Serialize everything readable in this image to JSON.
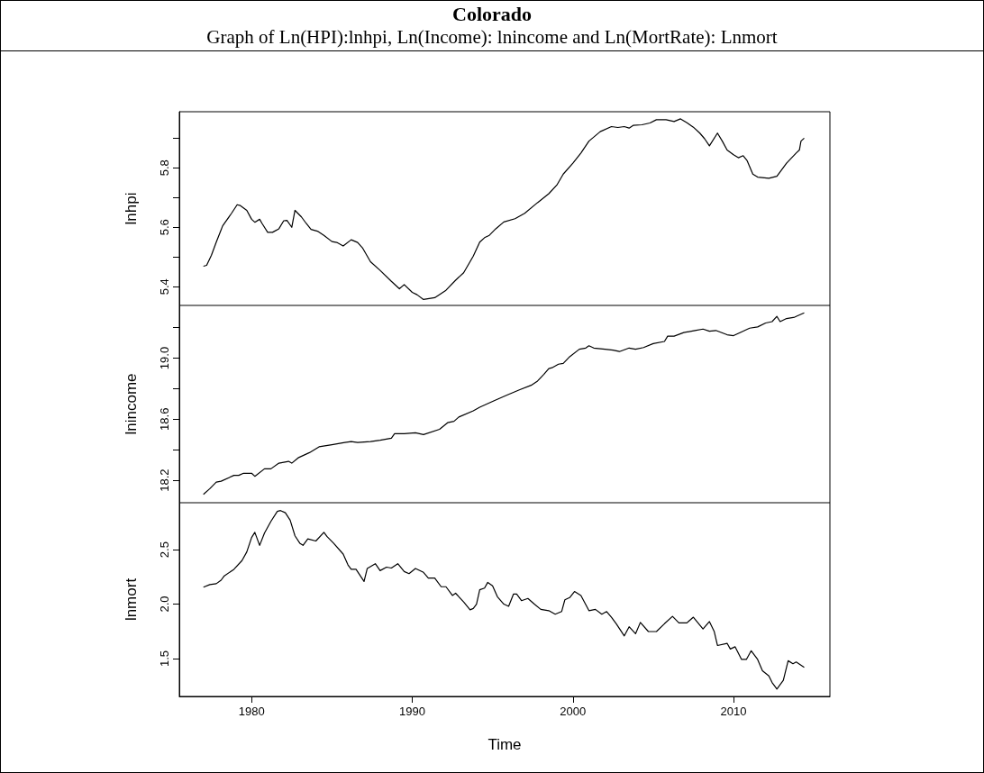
{
  "chart_data": [
    {
      "type": "line",
      "title": "Colorado",
      "subtitle": "Graph of Ln(HPI):lnhpi, Ln(Income): lnincome and Ln(MortRate): Lnmort",
      "ylabel": "lnhpi",
      "tick_labels": "y",
      "xlim": [
        1975.5,
        2016
      ],
      "ylim": [
        5.337,
        5.989
      ],
      "yticks": [
        5.4,
        {
          "value": 5.5,
          "label": null
        },
        5.6,
        {
          "value": 5.7,
          "label": null
        },
        5.8,
        {
          "value": 5.9,
          "label": null
        }
      ],
      "marker": "none",
      "series": [
        {
          "color": "#000000",
          "x": [
            1977.0,
            1977.2,
            1977.5,
            1977.8,
            1978.2,
            1978.75,
            1979.1,
            1979.3,
            1979.7,
            1980.0,
            1980.2,
            1980.5,
            1980.65,
            1981.0,
            1981.3,
            1981.7,
            1982.0,
            1982.2,
            1982.5,
            1982.7,
            1983.1,
            1983.4,
            1983.7,
            1984.1,
            1984.5,
            1985.0,
            1985.3,
            1985.7,
            1986.2,
            1986.6,
            1986.9,
            1987.4,
            1988.0,
            1988.7,
            1989.2,
            1989.5,
            1990.0,
            1990.3,
            1990.7,
            1991.4,
            1992.1,
            1992.7,
            1993.2,
            1993.8,
            1994.2,
            1994.5,
            1994.8,
            1995.2,
            1995.7,
            1996.4,
            1997.0,
            1997.8,
            1998.5,
            1999.0,
            1999.4,
            2000.0,
            2000.5,
            2001.0,
            2001.7,
            2002.4,
            2002.8,
            2003.2,
            2003.5,
            2003.75,
            2004.3,
            2004.8,
            2005.2,
            2005.8,
            2006.3,
            2006.7,
            2007.1,
            2007.5,
            2007.9,
            2008.2,
            2008.5,
            2009.0,
            2009.3,
            2009.6,
            2010.0,
            2010.3,
            2010.6,
            2010.85,
            2011.2,
            2011.5,
            2012.2,
            2012.7,
            2013.3,
            2013.9,
            2014.1,
            2014.2,
            2014.4
          ],
          "values": [
            5.469,
            5.472,
            5.506,
            5.55,
            5.605,
            5.647,
            5.676,
            5.673,
            5.657,
            5.627,
            5.617,
            5.627,
            5.613,
            5.583,
            5.583,
            5.595,
            5.622,
            5.623,
            5.6,
            5.657,
            5.635,
            5.613,
            5.593,
            5.587,
            5.573,
            5.552,
            5.549,
            5.537,
            5.558,
            5.549,
            5.531,
            5.484,
            5.455,
            5.418,
            5.393,
            5.407,
            5.381,
            5.373,
            5.357,
            5.363,
            5.388,
            5.422,
            5.447,
            5.503,
            5.55,
            5.565,
            5.573,
            5.595,
            5.618,
            5.629,
            5.647,
            5.683,
            5.713,
            5.742,
            5.779,
            5.816,
            5.85,
            5.89,
            5.922,
            5.939,
            5.936,
            5.939,
            5.934,
            5.943,
            5.945,
            5.951,
            5.962,
            5.962,
            5.956,
            5.965,
            5.952,
            5.937,
            5.917,
            5.898,
            5.874,
            5.917,
            5.89,
            5.86,
            5.844,
            5.834,
            5.841,
            5.824,
            5.779,
            5.769,
            5.765,
            5.772,
            5.816,
            5.85,
            5.86,
            5.89,
            5.9
          ]
        }
      ]
    },
    {
      "type": "line",
      "ylabel": "lnincome",
      "tick_labels": "y",
      "xlim": [
        1975.5,
        2016
      ],
      "ylim": [
        18.053,
        19.345
      ],
      "yticks": [
        18.2,
        {
          "value": 18.4,
          "label": null
        },
        18.6,
        {
          "value": 18.8,
          "label": null
        },
        {
          "value": 19,
          "label": "19.0"
        },
        {
          "value": 19.2,
          "label": null
        }
      ],
      "marker": "none",
      "series": [
        {
          "color": "#000000",
          "x": [
            1977.0,
            1977.4,
            1977.8,
            1978.1,
            1978.9,
            1979.2,
            1979.5,
            1980.0,
            1980.2,
            1980.8,
            1981.2,
            1981.7,
            1982.3,
            1982.5,
            1982.9,
            1983.6,
            1984.2,
            1985.0,
            1985.8,
            1986.2,
            1986.6,
            1987.4,
            1988.0,
            1988.7,
            1988.9,
            1989.5,
            1990.2,
            1990.7,
            1991.7,
            1992.2,
            1992.6,
            1992.9,
            1993.8,
            1994.2,
            1995.1,
            1995.9,
            1996.7,
            1997.4,
            1997.8,
            1998.2,
            1998.5,
            1998.7,
            1999.1,
            1999.4,
            1999.8,
            2000.4,
            2000.8,
            2001.0,
            2001.3,
            2002.0,
            2002.5,
            2002.9,
            2003.5,
            2003.9,
            2004.4,
            2005.0,
            2005.7,
            2005.9,
            2006.3,
            2006.9,
            2007.6,
            2008.1,
            2008.5,
            2008.9,
            2009.6,
            2010.0,
            2010.4,
            2011.0,
            2011.5,
            2012.0,
            2012.4,
            2012.7,
            2012.9,
            2013.3,
            2013.8,
            2014.4
          ],
          "values": [
            18.108,
            18.145,
            18.188,
            18.194,
            18.232,
            18.232,
            18.246,
            18.246,
            18.226,
            18.275,
            18.275,
            18.312,
            18.324,
            18.312,
            18.347,
            18.381,
            18.419,
            18.433,
            18.447,
            18.453,
            18.447,
            18.453,
            18.462,
            18.476,
            18.505,
            18.505,
            18.511,
            18.499,
            18.534,
            18.577,
            18.586,
            18.614,
            18.655,
            18.678,
            18.721,
            18.758,
            18.793,
            18.822,
            18.85,
            18.894,
            18.931,
            18.937,
            18.96,
            18.965,
            19.009,
            19.058,
            19.066,
            19.081,
            19.066,
            19.058,
            19.052,
            19.043,
            19.066,
            19.058,
            19.069,
            19.095,
            19.109,
            19.144,
            19.144,
            19.167,
            19.181,
            19.19,
            19.176,
            19.181,
            19.153,
            19.147,
            19.167,
            19.196,
            19.204,
            19.23,
            19.239,
            19.273,
            19.239,
            19.259,
            19.268,
            19.296
          ]
        }
      ]
    },
    {
      "type": "line",
      "xlabel": "Time",
      "ylabel": "lnmort",
      "xlim": [
        1975.5,
        2016
      ],
      "xticks": [
        1980,
        1990,
        2000,
        2010
      ],
      "ylim": [
        1.152,
        2.932
      ],
      "yticks": [
        1.5,
        {
          "value": 2,
          "label": "2.0"
        },
        2.5
      ],
      "marker": "none",
      "series": [
        {
          "color": "#000000",
          "x": [
            1977.0,
            1977.4,
            1977.8,
            1978.1,
            1978.3,
            1978.9,
            1979.4,
            1979.7,
            1980.0,
            1980.2,
            1980.5,
            1980.8,
            1981.2,
            1981.6,
            1981.8,
            1982.1,
            1982.4,
            1982.7,
            1983.0,
            1983.2,
            1983.5,
            1984.0,
            1984.5,
            1984.7,
            1985.1,
            1985.7,
            1986.0,
            1986.2,
            1986.5,
            1987.0,
            1987.2,
            1987.7,
            1988.0,
            1988.4,
            1988.7,
            1989.1,
            1989.5,
            1989.8,
            1990.2,
            1990.7,
            1991.0,
            1991.4,
            1991.8,
            1992.1,
            1992.5,
            1992.7,
            1993.2,
            1993.6,
            1993.8,
            1994.0,
            1994.2,
            1994.5,
            1994.7,
            1995.0,
            1995.3,
            1995.7,
            1996.0,
            1996.3,
            1996.5,
            1996.8,
            1997.2,
            1997.6,
            1998.0,
            1998.5,
            1998.9,
            1999.3,
            1999.5,
            1999.8,
            2000.1,
            2000.5,
            2001.0,
            2001.4,
            2001.8,
            2002.1,
            2002.4,
            2002.7,
            2003.2,
            2003.5,
            2003.9,
            2004.2,
            2004.7,
            2005.2,
            2005.7,
            2006.2,
            2006.6,
            2007.1,
            2007.5,
            2008.1,
            2008.5,
            2008.8,
            2009.0,
            2009.6,
            2009.8,
            2010.1,
            2010.5,
            2010.8,
            2011.1,
            2011.5,
            2011.8,
            2012.2,
            2012.4,
            2012.7,
            2013.1,
            2013.4,
            2013.7,
            2013.9,
            2014.4
          ],
          "values": [
            2.156,
            2.18,
            2.188,
            2.22,
            2.26,
            2.32,
            2.4,
            2.48,
            2.612,
            2.66,
            2.54,
            2.652,
            2.76,
            2.852,
            2.86,
            2.84,
            2.772,
            2.628,
            2.56,
            2.54,
            2.6,
            2.58,
            2.66,
            2.62,
            2.56,
            2.46,
            2.36,
            2.32,
            2.32,
            2.208,
            2.328,
            2.372,
            2.308,
            2.34,
            2.332,
            2.372,
            2.3,
            2.28,
            2.328,
            2.292,
            2.24,
            2.24,
            2.16,
            2.16,
            2.08,
            2.1,
            2.02,
            1.948,
            1.96,
            2.0,
            2.132,
            2.148,
            2.2,
            2.168,
            2.068,
            2.0,
            1.98,
            2.092,
            2.092,
            2.032,
            2.052,
            2.0,
            1.952,
            1.94,
            1.908,
            1.932,
            2.04,
            2.06,
            2.116,
            2.08,
            1.94,
            1.952,
            1.908,
            1.932,
            1.88,
            1.82,
            1.708,
            1.792,
            1.728,
            1.832,
            1.748,
            1.748,
            1.82,
            1.888,
            1.828,
            1.828,
            1.88,
            1.772,
            1.84,
            1.748,
            1.62,
            1.64,
            1.588,
            1.608,
            1.492,
            1.492,
            1.572,
            1.492,
            1.388,
            1.34,
            1.28,
            1.22,
            1.3,
            1.48,
            1.452,
            1.468,
            1.42
          ]
        }
      ]
    }
  ]
}
